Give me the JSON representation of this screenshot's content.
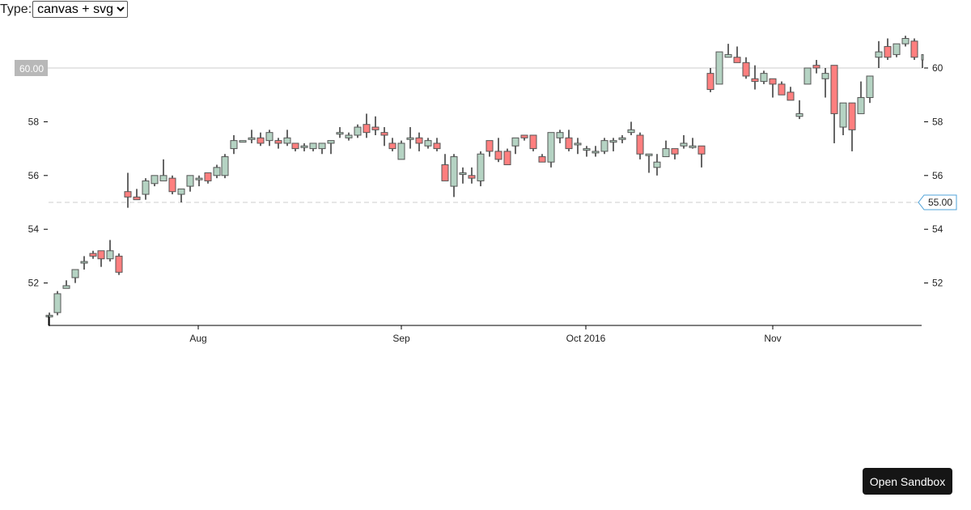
{
  "controls": {
    "type_label": "Type:",
    "type_selected": "canvas + svg"
  },
  "sandbox_button": {
    "label": "Open Sandbox"
  },
  "annotations": {
    "left_label": "60.00",
    "right_label": "55.00"
  },
  "colors": {
    "up_fill": "#b5d3c3",
    "down_fill": "#ff7f7f",
    "stroke": "#555555",
    "right_label_border": "#4fa3d9",
    "left_label_bg": "#b8b8b8"
  },
  "chart_data": {
    "type": "candlestick",
    "title": "",
    "xlabel": "",
    "ylabel": "",
    "ylim": [
      50.5,
      61.3
    ],
    "y_ticks": [
      52,
      54,
      56,
      58,
      60
    ],
    "x_ticks": [
      {
        "label": "Aug",
        "x": 245
      },
      {
        "label": "Sep",
        "x": 496
      },
      {
        "label": "Oct 2016",
        "x": 724
      },
      {
        "label": "Nov",
        "x": 955
      }
    ],
    "horizontal_lines": [
      {
        "value": 60.0,
        "style": "solid",
        "label": "60.00",
        "side": "left"
      },
      {
        "value": 55.0,
        "style": "dashed",
        "label": "55.00",
        "side": "right"
      }
    ],
    "candles": [
      {
        "x": 61,
        "o": 50.8,
        "h": 50.9,
        "l": 50.4,
        "c": 50.8
      },
      {
        "x": 71,
        "o": 50.9,
        "h": 51.7,
        "l": 50.8,
        "c": 51.6
      },
      {
        "x": 82,
        "o": 51.8,
        "h": 52.1,
        "l": 51.8,
        "c": 51.9
      },
      {
        "x": 93,
        "o": 52.2,
        "h": 52.5,
        "l": 52.0,
        "c": 52.5
      },
      {
        "x": 104,
        "o": 52.8,
        "h": 53.0,
        "l": 52.5,
        "c": 52.8
      },
      {
        "x": 115,
        "o": 53.1,
        "h": 53.2,
        "l": 52.9,
        "c": 53.0
      },
      {
        "x": 125,
        "o": 53.2,
        "h": 53.2,
        "l": 52.6,
        "c": 52.9
      },
      {
        "x": 136,
        "o": 52.9,
        "h": 53.6,
        "l": 52.8,
        "c": 53.2
      },
      {
        "x": 147,
        "o": 53.0,
        "h": 53.1,
        "l": 52.3,
        "c": 52.4
      },
      {
        "x": 158,
        "o": 55.4,
        "h": 56.1,
        "l": 54.8,
        "c": 55.2
      },
      {
        "x": 169,
        "o": 55.2,
        "h": 55.5,
        "l": 55.1,
        "c": 55.1
      },
      {
        "x": 180,
        "o": 55.3,
        "h": 55.9,
        "l": 55.1,
        "c": 55.8
      },
      {
        "x": 191,
        "o": 55.7,
        "h": 56.0,
        "l": 55.6,
        "c": 56.0
      },
      {
        "x": 202,
        "o": 55.8,
        "h": 56.6,
        "l": 55.8,
        "c": 56.0
      },
      {
        "x": 213,
        "o": 55.9,
        "h": 56.0,
        "l": 55.3,
        "c": 55.4
      },
      {
        "x": 224,
        "o": 55.3,
        "h": 55.5,
        "l": 55.0,
        "c": 55.5
      },
      {
        "x": 235,
        "o": 55.6,
        "h": 56.0,
        "l": 55.4,
        "c": 56.0
      },
      {
        "x": 246,
        "o": 55.9,
        "h": 56.0,
        "l": 55.6,
        "c": 55.9
      },
      {
        "x": 257,
        "o": 56.1,
        "h": 56.1,
        "l": 55.7,
        "c": 55.8
      },
      {
        "x": 268,
        "o": 56.0,
        "h": 56.4,
        "l": 55.9,
        "c": 56.3
      },
      {
        "x": 278,
        "o": 56.0,
        "h": 56.8,
        "l": 55.9,
        "c": 56.7
      },
      {
        "x": 289,
        "o": 57.0,
        "h": 57.5,
        "l": 56.8,
        "c": 57.3
      },
      {
        "x": 300,
        "o": 57.3,
        "h": 57.3,
        "l": 57.3,
        "c": 57.3
      },
      {
        "x": 311,
        "o": 57.4,
        "h": 57.7,
        "l": 57.2,
        "c": 57.4
      },
      {
        "x": 322,
        "o": 57.4,
        "h": 57.6,
        "l": 57.1,
        "c": 57.2
      },
      {
        "x": 333,
        "o": 57.3,
        "h": 57.7,
        "l": 57.1,
        "c": 57.6
      },
      {
        "x": 344,
        "o": 57.3,
        "h": 57.4,
        "l": 57.0,
        "c": 57.2
      },
      {
        "x": 355,
        "o": 57.2,
        "h": 57.7,
        "l": 57.1,
        "c": 57.4
      },
      {
        "x": 365,
        "o": 57.2,
        "h": 57.2,
        "l": 56.9,
        "c": 57.0
      },
      {
        "x": 376,
        "o": 57.1,
        "h": 57.2,
        "l": 56.9,
        "c": 57.1
      },
      {
        "x": 387,
        "o": 57.0,
        "h": 57.2,
        "l": 56.9,
        "c": 57.2
      },
      {
        "x": 398,
        "o": 57.0,
        "h": 57.2,
        "l": 56.8,
        "c": 57.2
      },
      {
        "x": 409,
        "o": 57.2,
        "h": 57.3,
        "l": 56.8,
        "c": 57.3
      },
      {
        "x": 420,
        "o": 57.6,
        "h": 57.8,
        "l": 57.4,
        "c": 57.6
      },
      {
        "x": 431,
        "o": 57.4,
        "h": 57.6,
        "l": 57.3,
        "c": 57.5
      },
      {
        "x": 442,
        "o": 57.5,
        "h": 57.9,
        "l": 57.4,
        "c": 57.8
      },
      {
        "x": 453,
        "o": 57.9,
        "h": 58.3,
        "l": 57.4,
        "c": 57.6
      },
      {
        "x": 464,
        "o": 57.8,
        "h": 58.2,
        "l": 57.5,
        "c": 57.7
      },
      {
        "x": 475,
        "o": 57.6,
        "h": 57.8,
        "l": 57.1,
        "c": 57.5
      },
      {
        "x": 485,
        "o": 57.2,
        "h": 57.4,
        "l": 56.9,
        "c": 57.0
      },
      {
        "x": 496,
        "o": 56.6,
        "h": 57.3,
        "l": 56.6,
        "c": 57.2
      },
      {
        "x": 507,
        "o": 57.4,
        "h": 57.8,
        "l": 57.0,
        "c": 57.4
      },
      {
        "x": 518,
        "o": 57.4,
        "h": 57.6,
        "l": 56.9,
        "c": 57.2
      },
      {
        "x": 529,
        "o": 57.1,
        "h": 57.4,
        "l": 57.0,
        "c": 57.3
      },
      {
        "x": 540,
        "o": 57.2,
        "h": 57.4,
        "l": 56.9,
        "c": 57.0
      },
      {
        "x": 550,
        "o": 56.4,
        "h": 56.8,
        "l": 55.9,
        "c": 55.8
      },
      {
        "x": 561,
        "o": 55.6,
        "h": 56.8,
        "l": 55.2,
        "c": 56.7
      },
      {
        "x": 572,
        "o": 56.1,
        "h": 56.3,
        "l": 55.7,
        "c": 56.1
      },
      {
        "x": 583,
        "o": 56.0,
        "h": 56.3,
        "l": 55.7,
        "c": 55.9
      },
      {
        "x": 594,
        "o": 55.8,
        "h": 56.9,
        "l": 55.6,
        "c": 56.8
      },
      {
        "x": 605,
        "o": 57.3,
        "h": 57.3,
        "l": 56.7,
        "c": 56.9
      },
      {
        "x": 616,
        "o": 56.9,
        "h": 57.4,
        "l": 56.5,
        "c": 56.6
      },
      {
        "x": 627,
        "o": 56.9,
        "h": 57.0,
        "l": 56.4,
        "c": 56.4
      },
      {
        "x": 637,
        "o": 57.1,
        "h": 57.4,
        "l": 56.8,
        "c": 57.4
      },
      {
        "x": 648,
        "o": 57.5,
        "h": 57.5,
        "l": 57.3,
        "c": 57.4
      },
      {
        "x": 659,
        "o": 57.5,
        "h": 57.5,
        "l": 56.9,
        "c": 57.0
      },
      {
        "x": 670,
        "o": 56.7,
        "h": 56.8,
        "l": 56.5,
        "c": 56.5
      },
      {
        "x": 681,
        "o": 56.5,
        "h": 57.6,
        "l": 56.3,
        "c": 57.6
      },
      {
        "x": 692,
        "o": 57.4,
        "h": 57.7,
        "l": 57.2,
        "c": 57.6
      },
      {
        "x": 703,
        "o": 57.4,
        "h": 57.7,
        "l": 56.9,
        "c": 57.0
      },
      {
        "x": 714,
        "o": 57.2,
        "h": 57.4,
        "l": 56.8,
        "c": 57.2
      },
      {
        "x": 725,
        "o": 57.0,
        "h": 57.1,
        "l": 56.7,
        "c": 57.0
      },
      {
        "x": 736,
        "o": 56.9,
        "h": 57.1,
        "l": 56.7,
        "c": 56.9
      },
      {
        "x": 747,
        "o": 56.9,
        "h": 57.4,
        "l": 56.8,
        "c": 57.3
      },
      {
        "x": 758,
        "o": 57.3,
        "h": 57.4,
        "l": 56.9,
        "c": 57.3
      },
      {
        "x": 769,
        "o": 57.4,
        "h": 57.5,
        "l": 57.2,
        "c": 57.4
      },
      {
        "x": 780,
        "o": 57.6,
        "h": 58.0,
        "l": 57.5,
        "c": 57.7
      },
      {
        "x": 791,
        "o": 57.5,
        "h": 57.6,
        "l": 56.6,
        "c": 56.8
      },
      {
        "x": 802,
        "o": 56.8,
        "h": 56.8,
        "l": 56.1,
        "c": 56.8
      },
      {
        "x": 812,
        "o": 56.3,
        "h": 56.8,
        "l": 56.0,
        "c": 56.5
      },
      {
        "x": 823,
        "o": 56.7,
        "h": 57.3,
        "l": 56.7,
        "c": 57.0
      },
      {
        "x": 834,
        "o": 57.0,
        "h": 57.0,
        "l": 56.6,
        "c": 56.8
      },
      {
        "x": 845,
        "o": 57.1,
        "h": 57.5,
        "l": 57.0,
        "c": 57.2
      },
      {
        "x": 856,
        "o": 57.1,
        "h": 57.4,
        "l": 57.0,
        "c": 57.1
      },
      {
        "x": 867,
        "o": 57.1,
        "h": 57.1,
        "l": 56.3,
        "c": 56.8
      },
      {
        "x": 878,
        "o": 59.8,
        "h": 60.0,
        "l": 59.1,
        "c": 59.2
      },
      {
        "x": 889,
        "o": 59.4,
        "h": 60.6,
        "l": 59.4,
        "c": 60.6
      },
      {
        "x": 900,
        "o": 60.4,
        "h": 60.9,
        "l": 60.4,
        "c": 60.5
      },
      {
        "x": 911,
        "o": 60.4,
        "h": 60.8,
        "l": 60.2,
        "c": 60.2
      },
      {
        "x": 922,
        "o": 60.2,
        "h": 60.4,
        "l": 59.6,
        "c": 59.7
      },
      {
        "x": 933,
        "o": 59.6,
        "h": 60.1,
        "l": 59.2,
        "c": 59.5
      },
      {
        "x": 944,
        "o": 59.5,
        "h": 59.9,
        "l": 59.4,
        "c": 59.8
      },
      {
        "x": 955,
        "o": 59.6,
        "h": 59.6,
        "l": 58.9,
        "c": 59.4
      },
      {
        "x": 966,
        "o": 59.4,
        "h": 59.5,
        "l": 59.0,
        "c": 59.0
      },
      {
        "x": 977,
        "o": 59.1,
        "h": 59.3,
        "l": 58.8,
        "c": 58.8
      },
      {
        "x": 988,
        "o": 58.2,
        "h": 58.8,
        "l": 58.1,
        "c": 58.3
      },
      {
        "x": 998,
        "o": 59.4,
        "h": 60.0,
        "l": 59.4,
        "c": 60.0
      },
      {
        "x": 1009,
        "o": 60.1,
        "h": 60.3,
        "l": 59.8,
        "c": 60.0
      },
      {
        "x": 1020,
        "o": 59.6,
        "h": 60.0,
        "l": 58.9,
        "c": 59.8
      },
      {
        "x": 1031,
        "o": 60.1,
        "h": 60.1,
        "l": 57.2,
        "c": 58.3
      },
      {
        "x": 1042,
        "o": 57.8,
        "h": 58.7,
        "l": 57.5,
        "c": 58.7
      },
      {
        "x": 1053,
        "o": 58.7,
        "h": 58.7,
        "l": 56.9,
        "c": 57.7
      },
      {
        "x": 1064,
        "o": 58.3,
        "h": 59.5,
        "l": 58.3,
        "c": 58.9
      },
      {
        "x": 1075,
        "o": 58.9,
        "h": 59.7,
        "l": 58.7,
        "c": 59.7
      },
      {
        "x": 1086,
        "o": 60.4,
        "h": 61.0,
        "l": 60.0,
        "c": 60.6
      },
      {
        "x": 1097,
        "o": 60.8,
        "h": 61.1,
        "l": 60.3,
        "c": 60.4
      },
      {
        "x": 1108,
        "o": 60.5,
        "h": 60.9,
        "l": 60.4,
        "c": 60.9
      },
      {
        "x": 1119,
        "o": 60.9,
        "h": 61.2,
        "l": 60.8,
        "c": 61.1
      },
      {
        "x": 1130,
        "o": 61.0,
        "h": 61.1,
        "l": 60.3,
        "c": 60.4
      },
      {
        "x": 1140,
        "o": 60.3,
        "h": 60.5,
        "l": 60.0,
        "c": 60.5
      }
    ]
  }
}
